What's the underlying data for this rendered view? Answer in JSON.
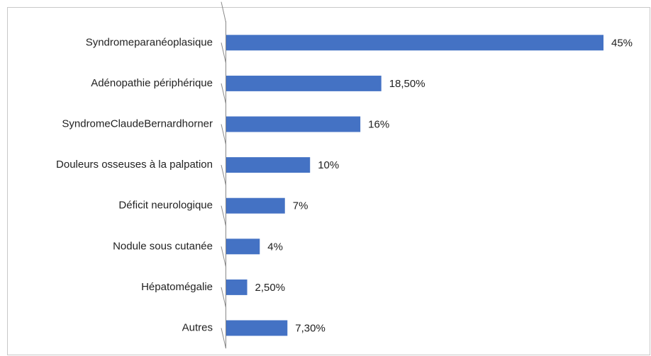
{
  "chart_data": {
    "type": "barh",
    "categories": [
      "Syndromeparanéoplasique",
      "Adénopathie périphérique",
      "SyndromeClaudeBernardhorner",
      "Douleurs osseuses à la palpation",
      "Déficit neurologique",
      "Nodule sous cutanée",
      "Hépatomégalie",
      "Autres"
    ],
    "values": [
      45,
      18.5,
      16,
      10,
      7,
      4,
      2.5,
      7.3
    ],
    "value_labels": [
      "45%",
      "18,50%",
      "16%",
      "10%",
      "7%",
      "4%",
      "2,50%",
      "7,30%"
    ],
    "color": "#4472c4"
  }
}
